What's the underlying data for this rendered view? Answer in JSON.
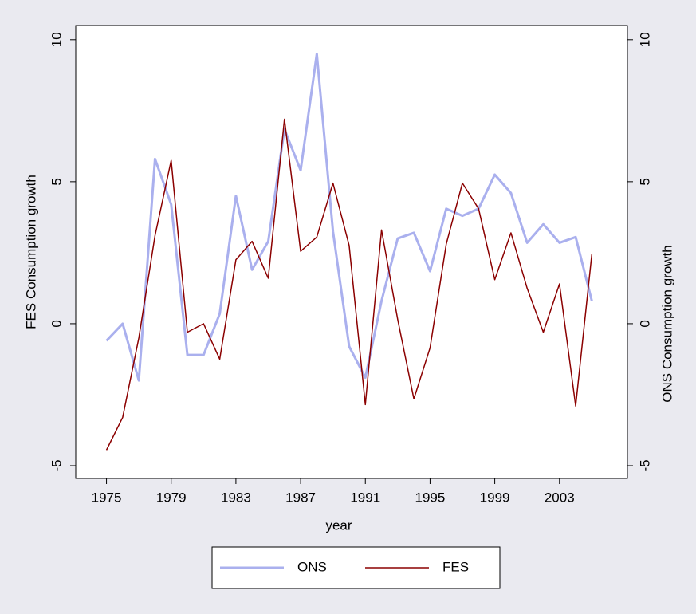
{
  "chart_data": {
    "type": "line",
    "x": [
      1975,
      1976,
      1977,
      1978,
      1979,
      1980,
      1981,
      1982,
      1983,
      1984,
      1985,
      1986,
      1987,
      1988,
      1989,
      1990,
      1991,
      1992,
      1993,
      1994,
      1995,
      1996,
      1997,
      1998,
      1999,
      2000,
      2001,
      2002,
      2003,
      2004,
      2005
    ],
    "series": [
      {
        "name": "ONS",
        "color": "#aab0ee",
        "axis": "y2",
        "values": [
          -0.6,
          0,
          -2.0,
          5.8,
          4.2,
          -1.1,
          -1.1,
          0.35,
          4.5,
          1.9,
          2.9,
          6.85,
          5.4,
          9.5,
          3.25,
          -0.8,
          -1.9,
          0.8,
          3.0,
          3.2,
          1.85,
          4.05,
          3.8,
          4.05,
          5.25,
          4.6,
          2.85,
          3.5,
          2.85,
          3.05,
          0.8
        ]
      },
      {
        "name": "FES",
        "color": "#8b0000",
        "values": [
          -4.45,
          -3.3,
          -0.5,
          3.1,
          5.75,
          -0.3,
          0,
          -1.25,
          2.25,
          2.9,
          1.6,
          7.2,
          2.55,
          3.05,
          4.95,
          2.75,
          -2.85,
          3.3,
          0.15,
          -2.65,
          -0.85,
          2.8,
          4.95,
          4.05,
          1.55,
          3.2,
          1.25,
          -0.3,
          1.4,
          -2.9,
          2.45
        ]
      }
    ],
    "xlabel": "year",
    "ylabel": "FES Consumption growth",
    "y2label": "ONS Consumption growth",
    "xlim": [
      1973.1,
      2007.2
    ],
    "xticks": [
      1975,
      1979,
      1983,
      1987,
      1991,
      1995,
      1999,
      2003
    ],
    "ylim": [
      -5.45,
      10.5
    ],
    "yticks": [
      -5,
      0,
      5,
      10
    ],
    "y2lim": [
      -5.45,
      10.5
    ],
    "y2ticks": [
      -5,
      0,
      5,
      10
    ]
  }
}
